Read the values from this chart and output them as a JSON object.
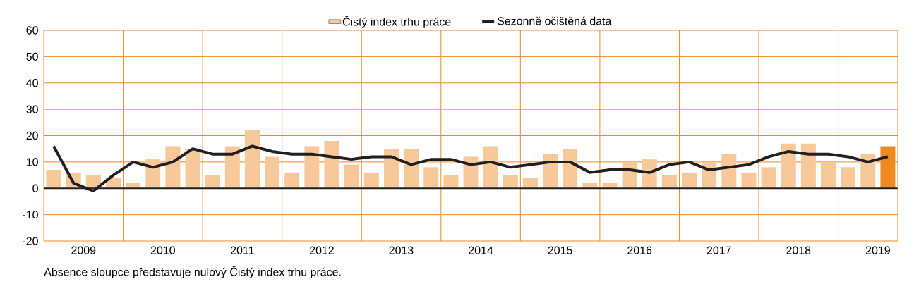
{
  "chart_data": {
    "type": "bar",
    "x": [
      2009.125,
      2009.375,
      2009.625,
      2009.875,
      2010.125,
      2010.375,
      2010.625,
      2010.875,
      2011.125,
      2011.375,
      2011.625,
      2011.875,
      2012.125,
      2012.375,
      2012.625,
      2012.875,
      2013.125,
      2013.375,
      2013.625,
      2013.875,
      2014.125,
      2014.375,
      2014.625,
      2014.875,
      2015.125,
      2015.375,
      2015.625,
      2015.875,
      2016.125,
      2016.375,
      2016.625,
      2016.875,
      2017.125,
      2017.375,
      2017.625,
      2017.875,
      2018.125,
      2018.375,
      2018.625,
      2018.875,
      2019.125,
      2019.375,
      2019.625
    ],
    "series": [
      {
        "name": "Čistý index trhu práce",
        "color": "#f7c99a",
        "colors": [
          "#f7c99a",
          "#f7c99a",
          "#f7c99a",
          "#f7c99a",
          "#f7c99a",
          "#f7c99a",
          "#f7c99a",
          "#f7c99a",
          "#f7c99a",
          "#f7c99a",
          "#f7c99a",
          "#f7c99a",
          "#f7c99a",
          "#f7c99a",
          "#f7c99a",
          "#f7c99a",
          "#f7c99a",
          "#f7c99a",
          "#f7c99a",
          "#f7c99a",
          "#f7c99a",
          "#f7c99a",
          "#f7c99a",
          "#f7c99a",
          "#f7c99a",
          "#f7c99a",
          "#f7c99a",
          "#f7c99a",
          "#f7c99a",
          "#f7c99a",
          "#f7c99a",
          "#f7c99a",
          "#f7c99a",
          "#f7c99a",
          "#f7c99a",
          "#f7c99a",
          "#f7c99a",
          "#f7c99a",
          "#f7c99a",
          "#f7c99a",
          "#f7c99a",
          "#f7c99a",
          "#ee8a1f"
        ],
        "values": [
          7,
          6,
          5,
          4,
          2,
          11,
          16,
          15,
          5,
          16,
          22,
          12,
          6,
          16,
          18,
          9,
          6,
          15,
          15,
          8,
          5,
          12,
          16,
          5,
          4,
          13,
          15,
          2,
          2,
          10,
          11,
          5,
          6,
          10,
          13,
          6,
          8,
          17,
          17,
          10,
          8,
          13,
          16
        ]
      },
      {
        "name": "Sezonně očištěná data",
        "type": "line",
        "color": "#231f20",
        "values": [
          16,
          2,
          -1,
          5,
          10,
          8,
          10,
          15,
          13,
          13,
          16,
          14,
          13,
          13,
          12,
          11,
          12,
          12,
          9,
          11,
          11,
          9,
          10,
          8,
          9,
          10,
          10,
          6,
          7,
          7,
          6,
          9,
          10,
          7,
          8,
          9,
          12,
          14,
          13,
          13,
          12,
          10,
          12
        ]
      }
    ],
    "xlim": [
      2009,
      2019.75
    ],
    "xticks": [
      {
        "value": 2009.5,
        "label": "2009"
      },
      {
        "value": 2010,
        "label": null
      },
      {
        "value": 2010.5,
        "label": "2010"
      },
      {
        "value": 2011,
        "label": null
      },
      {
        "value": 2011.5,
        "label": "2011"
      },
      {
        "value": 2012,
        "label": null
      },
      {
        "value": 2012.5,
        "label": "2012"
      },
      {
        "value": 2013,
        "label": null
      },
      {
        "value": 2013.5,
        "label": "2013"
      },
      {
        "value": 2014,
        "label": null
      },
      {
        "value": 2014.5,
        "label": "2014"
      },
      {
        "value": 2015,
        "label": null
      },
      {
        "value": 2015.5,
        "label": "2015"
      },
      {
        "value": 2016,
        "label": null
      },
      {
        "value": 2016.5,
        "label": "2016"
      },
      {
        "value": 2017,
        "label": null
      },
      {
        "value": 2017.5,
        "label": "2017"
      },
      {
        "value": 2018,
        "label": null
      },
      {
        "value": 2018.5,
        "label": "2018"
      },
      {
        "value": 2019,
        "label": null
      },
      {
        "value": 2019.5,
        "label": "2019"
      }
    ],
    "ylim": [
      -20,
      60
    ],
    "yticks": [
      -20,
      -10,
      0,
      10,
      20,
      30,
      40,
      50,
      60
    ],
    "grid": true,
    "legend": "top",
    "ref_lines": [
      {
        "axis": "y",
        "value": 0,
        "color": "#231f20"
      }
    ],
    "annotations": [
      "Absence sloupce představuje nulový Čistý index trhu práce."
    ]
  }
}
